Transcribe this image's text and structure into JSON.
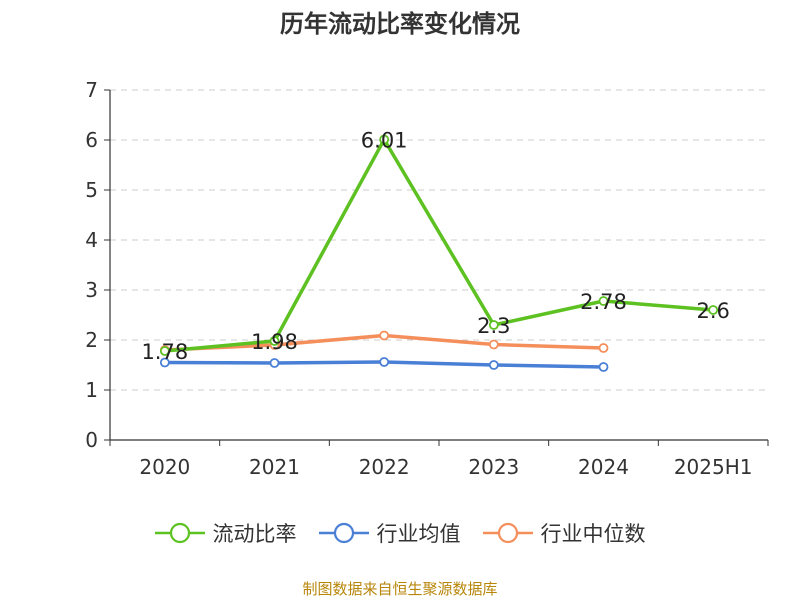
{
  "chart_data": {
    "type": "line",
    "title": "历年流动比率变化情况",
    "categories": [
      "2020",
      "2021",
      "2022",
      "2023",
      "2024",
      "2025H1"
    ],
    "ylim": [
      0,
      7
    ],
    "yticks": [
      "0",
      "1",
      "2",
      "3",
      "4",
      "5",
      "6",
      "7"
    ],
    "grid": true,
    "legend_position": "bottom",
    "series": [
      {
        "name": "流动比率",
        "color": "#5cc121",
        "values": [
          1.78,
          1.98,
          6.01,
          2.3,
          2.78,
          2.6
        ],
        "labels": [
          "1.78",
          "1.98",
          "6.01",
          "2.3",
          "2.78",
          "2.6"
        ]
      },
      {
        "name": "行业均值",
        "color": "#4a7fd6",
        "values": [
          1.55,
          1.54,
          1.56,
          1.5,
          1.46,
          null
        ]
      },
      {
        "name": "行业中位数",
        "color": "#f48f5c",
        "values": [
          1.8,
          1.9,
          2.09,
          1.91,
          1.84,
          null
        ]
      }
    ]
  },
  "footer": {
    "source": "制图数据来自恒生聚源数据库"
  }
}
